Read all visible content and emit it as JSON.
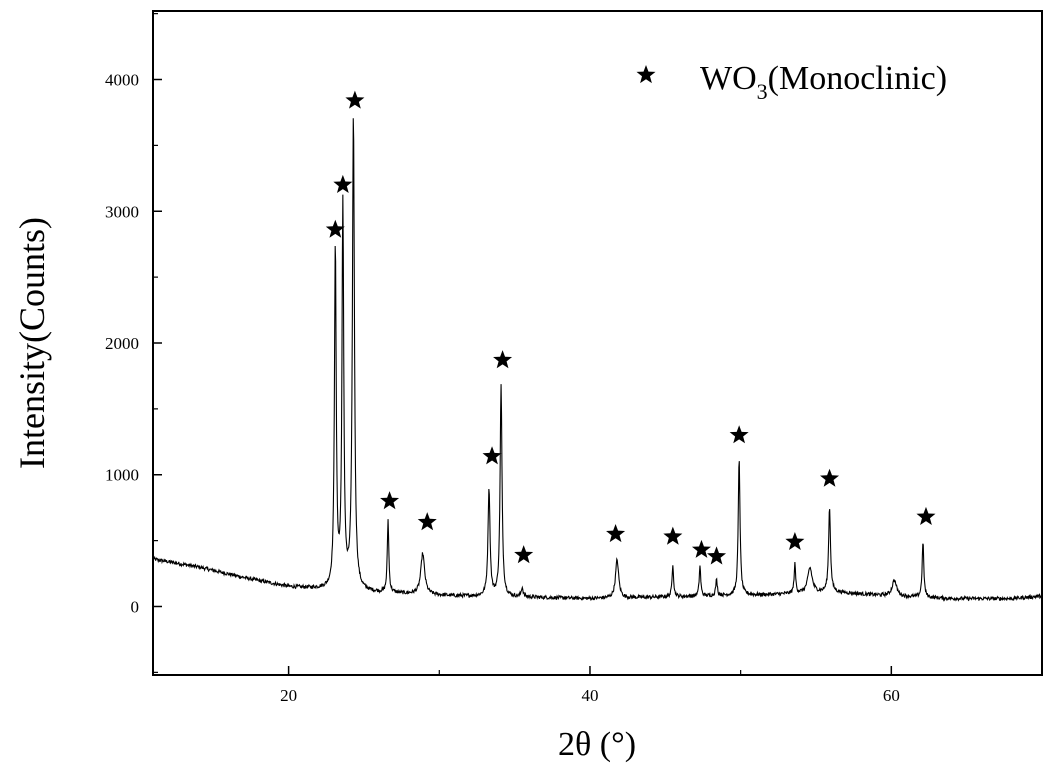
{
  "chart_data": {
    "type": "line",
    "title": "",
    "xlabel": "2θ (°)",
    "ylabel": "Intensity(Counts)",
    "xlim": [
      11,
      70
    ],
    "ylim": [
      -520,
      4520
    ],
    "x_ticks": [
      20,
      40,
      60
    ],
    "y_ticks": [
      0,
      1000,
      2000,
      3000,
      4000
    ],
    "grid": false,
    "legend": {
      "position": "top-right",
      "marker": "star",
      "label_main": "WO",
      "label_sub": "3",
      "label_rest": "(Monoclinic)"
    },
    "series": [
      {
        "color": "#000000",
        "baseline": [
          [
            11,
            360
          ],
          [
            14,
            300
          ],
          [
            17,
            220
          ],
          [
            20,
            150
          ],
          [
            22,
            135
          ],
          [
            25,
            110
          ],
          [
            28,
            95
          ],
          [
            31,
            80
          ],
          [
            36,
            70
          ],
          [
            40,
            60
          ],
          [
            44,
            70
          ],
          [
            48,
            80
          ],
          [
            52,
            90
          ],
          [
            56,
            110
          ],
          [
            60,
            80
          ],
          [
            64,
            60
          ],
          [
            68,
            60
          ],
          [
            70,
            80
          ]
        ],
        "peaks": [
          {
            "x": 23.1,
            "height": 2600,
            "width": 0.14
          },
          {
            "x": 23.6,
            "height": 2900,
            "width": 0.14
          },
          {
            "x": 24.3,
            "height": 3600,
            "width": 0.16
          },
          {
            "x": 26.6,
            "height": 550,
            "width": 0.12
          },
          {
            "x": 28.9,
            "height": 310,
            "width": 0.3
          },
          {
            "x": 33.3,
            "height": 820,
            "width": 0.16
          },
          {
            "x": 34.1,
            "height": 1600,
            "width": 0.15
          },
          {
            "x": 35.5,
            "height": 70,
            "width": 0.15
          },
          {
            "x": 41.8,
            "height": 290,
            "width": 0.25
          },
          {
            "x": 45.5,
            "height": 250,
            "width": 0.12
          },
          {
            "x": 47.3,
            "height": 230,
            "width": 0.12
          },
          {
            "x": 48.4,
            "height": 120,
            "width": 0.13
          },
          {
            "x": 49.9,
            "height": 1040,
            "width": 0.14
          },
          {
            "x": 53.6,
            "height": 220,
            "width": 0.12
          },
          {
            "x": 54.6,
            "height": 190,
            "width": 0.35
          },
          {
            "x": 55.9,
            "height": 640,
            "width": 0.15
          },
          {
            "x": 60.2,
            "height": 120,
            "width": 0.35
          },
          {
            "x": 62.1,
            "height": 420,
            "width": 0.13
          }
        ]
      }
    ],
    "peak_markers": [
      {
        "x": 23.1,
        "y": 2860
      },
      {
        "x": 23.6,
        "y": 3200
      },
      {
        "x": 24.4,
        "y": 3840
      },
      {
        "x": 26.7,
        "y": 800
      },
      {
        "x": 29.2,
        "y": 640
      },
      {
        "x": 33.5,
        "y": 1140
      },
      {
        "x": 34.2,
        "y": 1870
      },
      {
        "x": 35.6,
        "y": 390
      },
      {
        "x": 41.7,
        "y": 550
      },
      {
        "x": 45.5,
        "y": 530
      },
      {
        "x": 47.4,
        "y": 430
      },
      {
        "x": 48.4,
        "y": 380
      },
      {
        "x": 49.9,
        "y": 1300
      },
      {
        "x": 53.6,
        "y": 490
      },
      {
        "x": 55.9,
        "y": 970
      },
      {
        "x": 62.3,
        "y": 680
      }
    ]
  }
}
